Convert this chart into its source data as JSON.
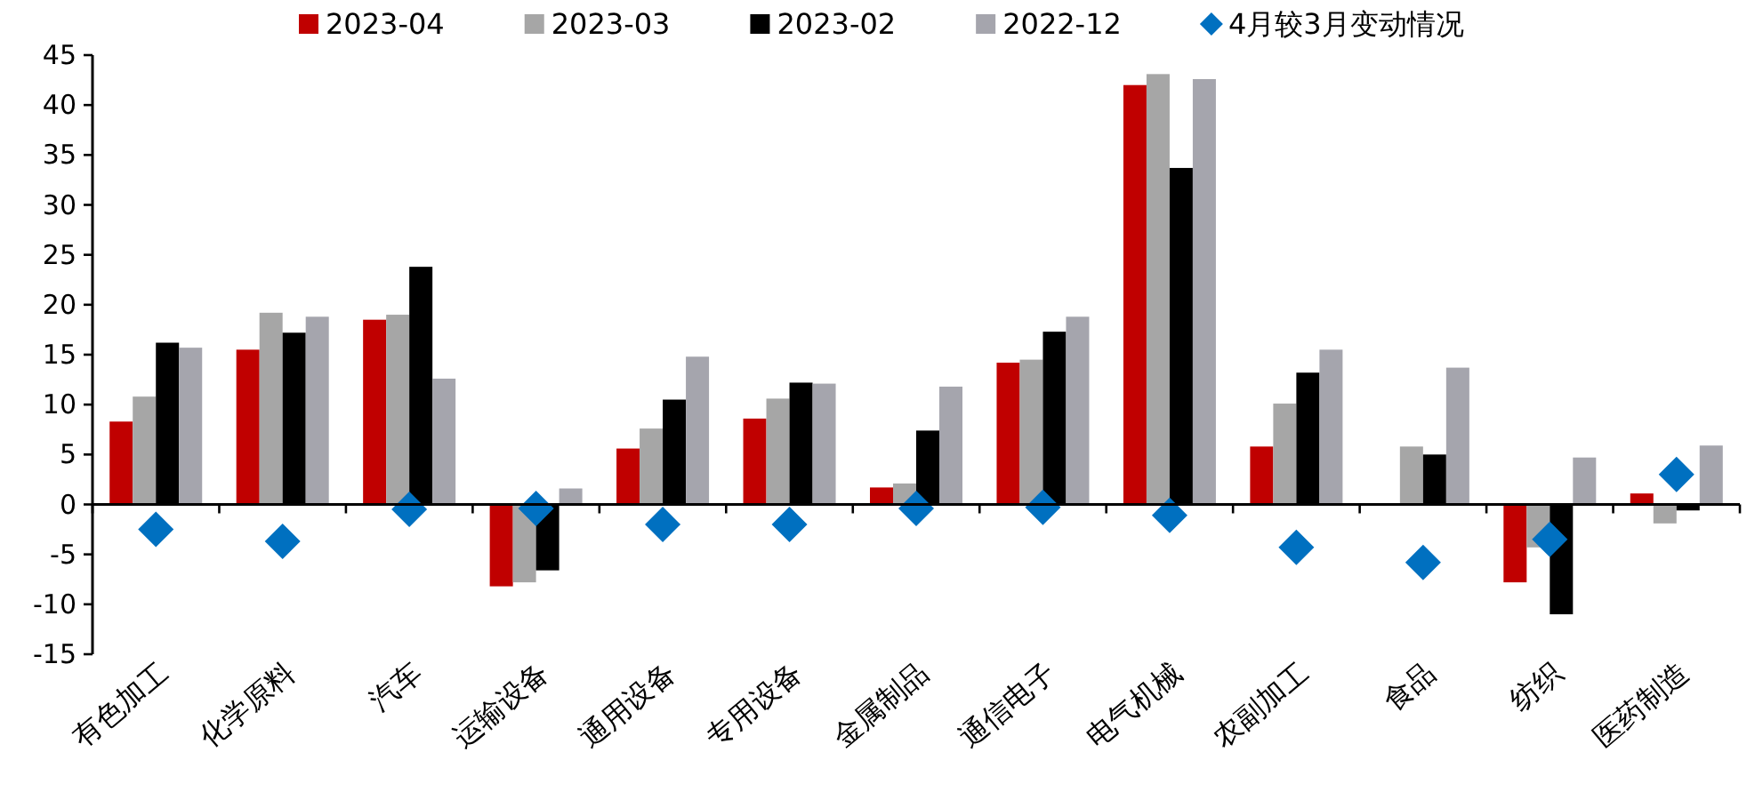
{
  "chart_data": {
    "type": "bar",
    "categories": [
      "有色加工",
      "化学原料",
      "汽车",
      "运输设备",
      "通用设备",
      "专用设备",
      "金属制品",
      "通信电子",
      "电气机械",
      "农副加工",
      "食品",
      "纺织",
      "医药制造"
    ],
    "series": [
      {
        "name": "2023-04",
        "color": "#c00000",
        "values": [
          8.3,
          15.5,
          18.5,
          -8.2,
          5.6,
          8.6,
          1.7,
          14.2,
          42.0,
          5.8,
          0,
          -7.8,
          1.1
        ]
      },
      {
        "name": "2023-03",
        "color": "#a6a6a6",
        "values": [
          10.8,
          19.2,
          19.0,
          -7.8,
          7.6,
          10.6,
          2.1,
          14.5,
          43.1,
          10.1,
          5.8,
          -4.3,
          -1.9
        ]
      },
      {
        "name": "2023-02",
        "color": "#000000",
        "values": [
          16.2,
          17.2,
          23.8,
          -6.6,
          10.5,
          12.2,
          7.4,
          17.3,
          33.7,
          13.2,
          5.0,
          -11.0,
          -0.6
        ]
      },
      {
        "name": "2022-12",
        "color": "#a5a5ad",
        "values": [
          15.7,
          18.8,
          12.6,
          1.6,
          14.8,
          12.1,
          11.8,
          18.8,
          42.6,
          15.5,
          13.7,
          4.7,
          5.9
        ]
      },
      {
        "name": "4月较3月变动情况",
        "type": "scatter",
        "marker": "diamond",
        "color": "#0070c0",
        "values": [
          -2.5,
          -3.7,
          -0.5,
          -0.4,
          -2.0,
          -2.0,
          -0.4,
          -0.3,
          -1.1,
          -4.3,
          -5.8,
          -3.5,
          3.0
        ]
      }
    ],
    "ylim": [
      -15,
      45
    ],
    "yticks": [
      -15,
      -10,
      -5,
      0,
      5,
      10,
      15,
      20,
      25,
      30,
      35,
      40,
      45
    ],
    "legend": "top"
  }
}
